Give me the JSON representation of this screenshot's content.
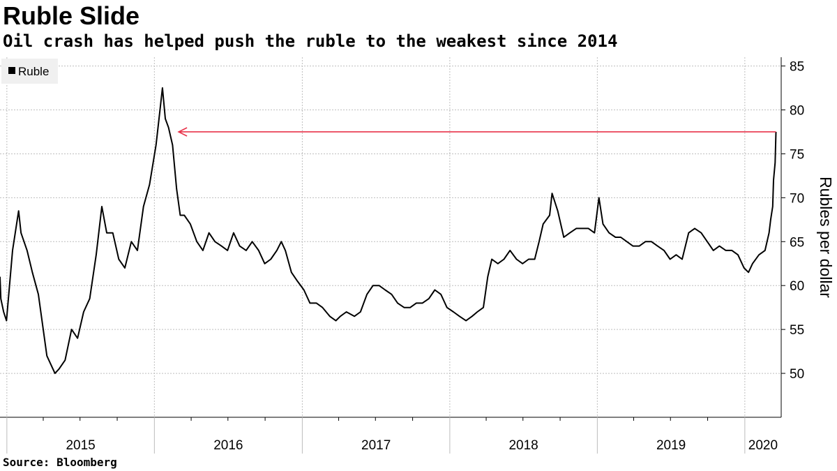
{
  "title": "Ruble Slide",
  "subtitle": "Oil crash has helped push the ruble to the weakest since 2014",
  "source": "Source: Bloomberg",
  "colors": {
    "series": "#000000",
    "annotation_arrow": "#e8334a",
    "grid": "#bdbdbd"
  },
  "chart_data": {
    "type": "line",
    "ylabel": "Rubles per dollar",
    "ylim": [
      45,
      86
    ],
    "yticks": [
      50,
      55,
      60,
      65,
      70,
      75,
      80,
      85
    ],
    "y_axis_side": "right",
    "grid": true,
    "legend_position": "top-left",
    "x_tick_labels": [
      "2015",
      "2016",
      "2017",
      "2018",
      "2019",
      "2020"
    ],
    "xlim": [
      "2014-12-15",
      "2020-03-31"
    ],
    "series": [
      {
        "name": "Ruble",
        "color": "#000000",
        "x": [
          "2014-12-15",
          "2014-12-17",
          "2014-12-24",
          "2014-12-31",
          "2015-01-15",
          "2015-01-30",
          "2015-02-05",
          "2015-02-20",
          "2015-03-05",
          "2015-03-20",
          "2015-04-10",
          "2015-04-30",
          "2015-05-10",
          "2015-05-25",
          "2015-06-10",
          "2015-06-25",
          "2015-07-10",
          "2015-07-25",
          "2015-08-10",
          "2015-08-24",
          "2015-09-05",
          "2015-09-20",
          "2015-10-05",
          "2015-10-20",
          "2015-11-05",
          "2015-11-20",
          "2015-12-05",
          "2015-12-20",
          "2016-01-05",
          "2016-01-15",
          "2016-01-21",
          "2016-01-28",
          "2016-02-05",
          "2016-02-15",
          "2016-02-25",
          "2016-03-05",
          "2016-03-15",
          "2016-03-30",
          "2016-04-15",
          "2016-04-30",
          "2016-05-15",
          "2016-05-30",
          "2016-06-15",
          "2016-06-30",
          "2016-07-15",
          "2016-07-30",
          "2016-08-15",
          "2016-08-30",
          "2016-09-15",
          "2016-09-30",
          "2016-10-15",
          "2016-10-30",
          "2016-11-10",
          "2016-11-20",
          "2016-12-05",
          "2016-12-20",
          "2017-01-05",
          "2017-01-20",
          "2017-02-05",
          "2017-02-20",
          "2017-03-10",
          "2017-03-25",
          "2017-04-05",
          "2017-04-20",
          "2017-05-10",
          "2017-05-25",
          "2017-06-10",
          "2017-06-25",
          "2017-07-10",
          "2017-07-25",
          "2017-08-10",
          "2017-08-25",
          "2017-09-10",
          "2017-09-25",
          "2017-10-10",
          "2017-10-25",
          "2017-11-10",
          "2017-11-25",
          "2017-12-10",
          "2017-12-25",
          "2018-01-10",
          "2018-01-25",
          "2018-02-10",
          "2018-02-25",
          "2018-03-10",
          "2018-03-25",
          "2018-04-05",
          "2018-04-10",
          "2018-04-15",
          "2018-04-30",
          "2018-05-15",
          "2018-05-30",
          "2018-06-15",
          "2018-06-30",
          "2018-07-15",
          "2018-07-30",
          "2018-08-10",
          "2018-08-20",
          "2018-09-05",
          "2018-09-11",
          "2018-09-25",
          "2018-10-10",
          "2018-10-25",
          "2018-11-10",
          "2018-11-25",
          "2018-12-10",
          "2018-12-25",
          "2019-01-05",
          "2019-01-15",
          "2019-01-30",
          "2019-02-15",
          "2019-02-28",
          "2019-03-15",
          "2019-03-30",
          "2019-04-15",
          "2019-04-30",
          "2019-05-15",
          "2019-05-30",
          "2019-06-15",
          "2019-06-30",
          "2019-07-15",
          "2019-07-30",
          "2019-08-15",
          "2019-08-30",
          "2019-09-15",
          "2019-09-30",
          "2019-10-15",
          "2019-10-30",
          "2019-11-15",
          "2019-11-30",
          "2019-12-15",
          "2019-12-30",
          "2020-01-10",
          "2020-01-20",
          "2020-02-05",
          "2020-02-20",
          "2020-03-01",
          "2020-03-05",
          "2020-03-10",
          "2020-03-12",
          "2020-03-16",
          "2020-03-18"
        ],
        "y": [
          61.0,
          58.5,
          57.0,
          56.0,
          64.0,
          68.5,
          66.0,
          64.0,
          61.5,
          59.0,
          52.0,
          50.0,
          50.5,
          51.5,
          55.0,
          54.0,
          57.0,
          58.5,
          63.5,
          69.0,
          66.0,
          66.0,
          63.0,
          62.0,
          65.0,
          64.0,
          69.0,
          71.5,
          76.0,
          80.0,
          82.5,
          79.0,
          78.0,
          76.0,
          71.0,
          68.0,
          68.0,
          67.0,
          65.0,
          64.0,
          66.0,
          65.0,
          64.5,
          64.0,
          66.0,
          64.5,
          64.0,
          65.0,
          64.0,
          62.5,
          63.0,
          64.0,
          65.0,
          64.0,
          61.5,
          60.5,
          59.5,
          58.0,
          58.0,
          57.5,
          56.5,
          56.0,
          56.5,
          57.0,
          56.5,
          57.0,
          59.0,
          60.0,
          60.0,
          59.5,
          59.0,
          58.0,
          57.5,
          57.5,
          58.0,
          58.0,
          58.5,
          59.5,
          59.0,
          57.5,
          57.0,
          56.5,
          56.0,
          56.5,
          57.0,
          57.5,
          61.0,
          62.0,
          63.0,
          62.5,
          63.0,
          64.0,
          63.0,
          62.5,
          63.0,
          63.0,
          65.0,
          67.0,
          68.0,
          70.5,
          68.5,
          65.5,
          66.0,
          66.5,
          66.5,
          66.5,
          66.0,
          70.0,
          67.0,
          66.0,
          65.5,
          65.5,
          65.0,
          64.5,
          64.5,
          65.0,
          65.0,
          64.5,
          64.0,
          63.0,
          63.5,
          63.0,
          66.0,
          66.5,
          66.0,
          65.0,
          64.0,
          64.5,
          64.0,
          64.0,
          63.5,
          62.0,
          61.5,
          62.5,
          63.5,
          64.0,
          66.0,
          67.5,
          69.0,
          72.0,
          74.0,
          77.5
        ]
      }
    ]
  }
}
